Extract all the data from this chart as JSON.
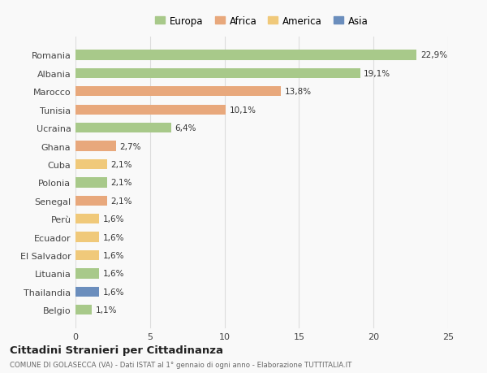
{
  "countries": [
    "Romania",
    "Albania",
    "Marocco",
    "Tunisia",
    "Ucraina",
    "Ghana",
    "Cuba",
    "Polonia",
    "Senegal",
    "Perù",
    "Ecuador",
    "El Salvador",
    "Lituania",
    "Thailandia",
    "Belgio"
  ],
  "values": [
    22.9,
    19.1,
    13.8,
    10.1,
    6.4,
    2.7,
    2.1,
    2.1,
    2.1,
    1.6,
    1.6,
    1.6,
    1.6,
    1.6,
    1.1
  ],
  "labels": [
    "22,9%",
    "19,1%",
    "13,8%",
    "10,1%",
    "6,4%",
    "2,7%",
    "2,1%",
    "2,1%",
    "2,1%",
    "1,6%",
    "1,6%",
    "1,6%",
    "1,6%",
    "1,6%",
    "1,1%"
  ],
  "colors": [
    "#a8c98a",
    "#a8c98a",
    "#e8a87c",
    "#e8a87c",
    "#a8c98a",
    "#e8a87c",
    "#f0c97a",
    "#a8c98a",
    "#e8a87c",
    "#f0c97a",
    "#f0c97a",
    "#f0c97a",
    "#a8c98a",
    "#6b8ebd",
    "#a8c98a"
  ],
  "legend_labels": [
    "Europa",
    "Africa",
    "America",
    "Asia"
  ],
  "legend_colors": [
    "#a8c98a",
    "#e8a87c",
    "#f0c97a",
    "#6b8ebd"
  ],
  "title": "Cittadini Stranieri per Cittadinanza",
  "subtitle": "COMUNE DI GOLASECCA (VA) - Dati ISTAT al 1° gennaio di ogni anno - Elaborazione TUTTITALIA.IT",
  "xlim": [
    0,
    25
  ],
  "xticks": [
    0,
    5,
    10,
    15,
    20,
    25
  ],
  "background_color": "#f9f9f9",
  "grid_color": "#dddddd"
}
